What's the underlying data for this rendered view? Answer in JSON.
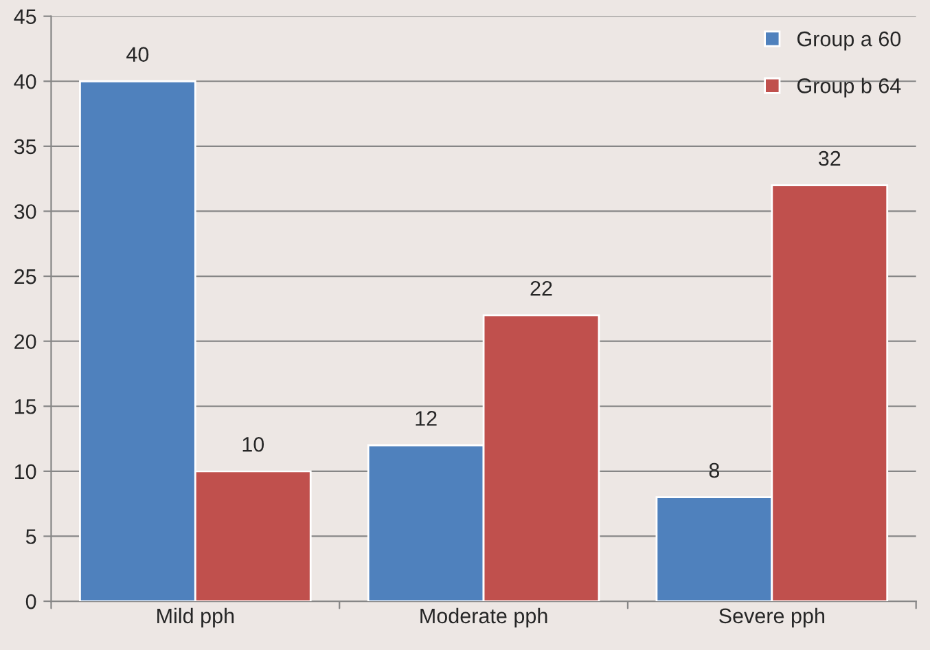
{
  "chart_data": {
    "type": "bar",
    "categories": [
      "Mild pph",
      "Moderate pph",
      "Severe pph"
    ],
    "series": [
      {
        "name": "Group a 60",
        "color": "#4f81bd",
        "values": [
          40,
          12,
          8
        ]
      },
      {
        "name": "Group b 64",
        "color": "#c0504d",
        "values": [
          10,
          22,
          32
        ]
      }
    ],
    "ylim": [
      0,
      45
    ],
    "yticks": [
      0,
      5,
      10,
      15,
      20,
      25,
      30,
      35,
      40,
      45
    ],
    "grid": "y",
    "legend": "top right",
    "data_labels": true
  }
}
